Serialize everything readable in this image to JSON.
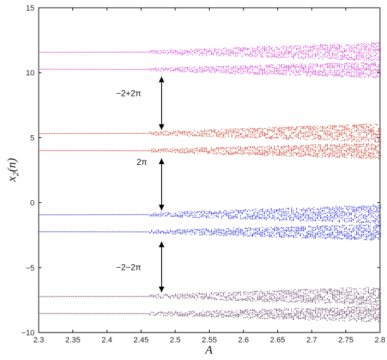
{
  "chart_data": {
    "type": "scatter",
    "title": "",
    "xlabel": "A",
    "ylabel": "x2(n)",
    "ylabel_main": "x",
    "ylabel_sub": "2",
    "ylabel_suffix": "(n)",
    "xlim": [
      2.3,
      2.8
    ],
    "ylim": [
      -10,
      15
    ],
    "grid": false,
    "x_ticks": [
      2.3,
      2.35,
      2.4,
      2.45,
      2.5,
      2.55,
      2.6,
      2.65,
      2.7,
      2.75,
      2.8
    ],
    "x_tick_labels": [
      "2.3",
      "2.35",
      "2.4",
      "2.45",
      "2.5",
      "2.55",
      "2.6",
      "2.65",
      "2.7",
      "2.75",
      "2.8"
    ],
    "y_ticks": [
      -10,
      -5,
      0,
      5,
      10,
      15
    ],
    "y_tick_labels": [
      "−10",
      "−5",
      "0",
      "5",
      "10",
      "15"
    ],
    "series": [
      {
        "color": "#d23cd2",
        "branches": [
          {
            "x_split": 2.46,
            "y_start": 11.55,
            "y_slope": 0.7,
            "spread": 1.2,
            "sign": 1
          },
          {
            "x_split": 2.46,
            "y_start": 10.35,
            "y_slope": -0.9,
            "spread": 1.0,
            "sign": -1
          }
        ]
      },
      {
        "color": "#c83a2a",
        "branches": [
          {
            "x_split": 2.46,
            "y_start": 5.3,
            "y_slope": 0.7,
            "spread": 1.2,
            "sign": 1
          },
          {
            "x_split": 2.46,
            "y_start": 4.1,
            "y_slope": -0.9,
            "spread": 1.0,
            "sign": -1
          }
        ]
      },
      {
        "color": "#2b2bd8",
        "branches": [
          {
            "x_split": 2.46,
            "y_start": -0.95,
            "y_slope": 0.7,
            "spread": 1.2,
            "sign": 1
          },
          {
            "x_split": 2.46,
            "y_start": -2.15,
            "y_slope": -0.9,
            "spread": 1.0,
            "sign": -1
          }
        ]
      },
      {
        "color": "#6b4a6b",
        "branches": [
          {
            "x_split": 2.46,
            "y_start": -7.25,
            "y_slope": 0.7,
            "spread": 1.2,
            "sign": 1
          },
          {
            "x_split": 2.46,
            "y_start": -8.45,
            "y_slope": -0.9,
            "spread": 1.0,
            "sign": -1
          }
        ]
      }
    ],
    "annotations": [
      {
        "text": "−2+2π",
        "text_x": 2.3,
        "text_y": 8.2,
        "arrow_x": 2.48,
        "arrow_from": 9.7,
        "arrow_to": 5.6
      },
      {
        "text": "2π",
        "text_x": 2.33,
        "text_y": 2.9,
        "arrow_x": 2.48,
        "arrow_from": 3.4,
        "arrow_to": -0.6
      },
      {
        "text": "−2−2π",
        "text_x": 2.3,
        "text_y": -5.2,
        "arrow_x": 2.48,
        "arrow_from": -3.0,
        "arrow_to": -6.9
      }
    ]
  }
}
